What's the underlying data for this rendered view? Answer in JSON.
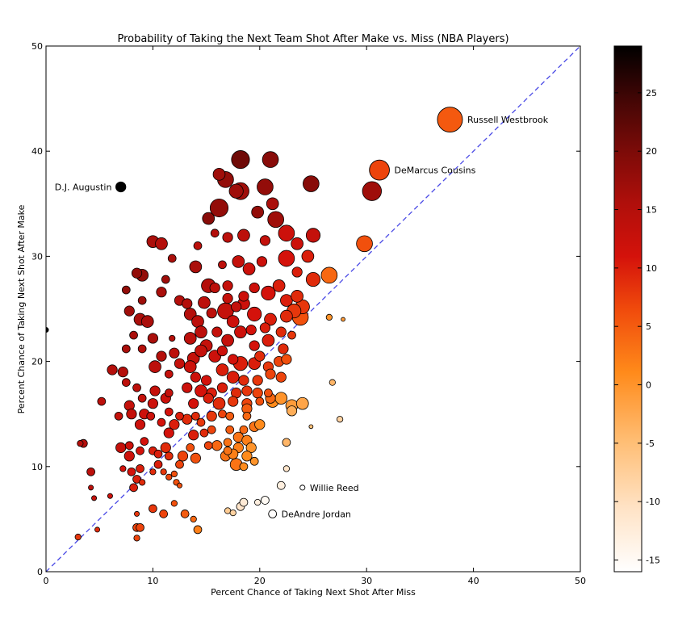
{
  "chart_data": {
    "type": "scatter",
    "title": "Probability of Taking the Next Team Shot After Make vs. Miss (NBA Players)",
    "xlabel": "Percent Chance of Taking Next Shot After Miss",
    "ylabel": "Percent Chance of Taking Next Shot After Make",
    "xlim": [
      0,
      50
    ],
    "ylim": [
      0,
      50
    ],
    "x_ticks": [
      "0",
      "10",
      "20",
      "30",
      "40",
      "50"
    ],
    "y_ticks": [
      "0",
      "10",
      "20",
      "30",
      "40",
      "50"
    ],
    "reference_line": {
      "style": "dashed",
      "from": [
        0,
        0
      ],
      "to": [
        50,
        50
      ],
      "color": "#4040e0"
    },
    "colorbar": {
      "range": [
        -16,
        29
      ],
      "ticks": [
        "-15",
        "-10",
        "-5",
        "0",
        "5",
        "10",
        "15",
        "20",
        "25"
      ],
      "colormap": "gist_heat_r"
    },
    "annotations": [
      {
        "label": "Russell Westbrook",
        "x": 37.8,
        "y": 43.0,
        "size": 25.0,
        "color_value": 5.2
      },
      {
        "label": "DeMarcus Cousins",
        "x": 31.2,
        "y": 38.2,
        "size": 20.0,
        "color_value": 7.0
      },
      {
        "label": "D.J. Augustin",
        "x": 7.0,
        "y": 36.6,
        "size": 10.0,
        "color_value": 29.6
      },
      {
        "label": "Willie Reed",
        "x": 24.0,
        "y": 8.0,
        "size": 5.0,
        "color_value": -16.0
      },
      {
        "label": "DeAndre Jordan",
        "x": 21.2,
        "y": 5.5,
        "size": 8.0,
        "color_value": -15.7
      }
    ],
    "points": [
      [
        18.2,
        39.2,
        18,
        21
      ],
      [
        21.0,
        39.2,
        16,
        19
      ],
      [
        16.2,
        37.8,
        12,
        17
      ],
      [
        16.8,
        37.3,
        16,
        18
      ],
      [
        17.8,
        36.2,
        14,
        17
      ],
      [
        18.2,
        36.2,
        17,
        17
      ],
      [
        20.5,
        36.6,
        16,
        18
      ],
      [
        24.8,
        36.9,
        16,
        19
      ],
      [
        30.5,
        36.2,
        19,
        17
      ],
      [
        15.2,
        33.6,
        12,
        19
      ],
      [
        16.2,
        34.6,
        18,
        18
      ],
      [
        19.8,
        34.2,
        12,
        18
      ],
      [
        21.2,
        35.0,
        12,
        16
      ],
      [
        21.5,
        33.5,
        16,
        17
      ],
      [
        10.0,
        31.4,
        12,
        16
      ],
      [
        10.8,
        31.2,
        12,
        15
      ],
      [
        14.2,
        31.0,
        8,
        14
      ],
      [
        15.8,
        32.2,
        8,
        15
      ],
      [
        17.0,
        31.8,
        10,
        14
      ],
      [
        18.5,
        32.0,
        12,
        14
      ],
      [
        20.5,
        31.5,
        10,
        13
      ],
      [
        22.5,
        32.2,
        16,
        12
      ],
      [
        23.5,
        31.2,
        12,
        12
      ],
      [
        25.0,
        32.0,
        14,
        13
      ],
      [
        24.5,
        30.0,
        12,
        10
      ],
      [
        29.8,
        31.2,
        16,
        6
      ],
      [
        8.5,
        28.4,
        10,
        18
      ],
      [
        9.0,
        28.2,
        12,
        18
      ],
      [
        11.2,
        27.8,
        8,
        17
      ],
      [
        11.8,
        29.8,
        8,
        16
      ],
      [
        14.0,
        29.0,
        12,
        16
      ],
      [
        15.2,
        27.2,
        14,
        15
      ],
      [
        16.5,
        29.2,
        8,
        14
      ],
      [
        17.0,
        27.2,
        10,
        13
      ],
      [
        18.0,
        29.5,
        12,
        13
      ],
      [
        19.0,
        28.8,
        12,
        12
      ],
      [
        20.2,
        29.5,
        10,
        12
      ],
      [
        22.5,
        29.8,
        16,
        11
      ],
      [
        23.5,
        28.5,
        10,
        10
      ],
      [
        25.0,
        27.8,
        14,
        9
      ],
      [
        26.5,
        28.2,
        16,
        4
      ],
      [
        7.5,
        26.8,
        8,
        18
      ],
      [
        9.0,
        25.8,
        8,
        17
      ],
      [
        10.8,
        26.6,
        10,
        16
      ],
      [
        12.5,
        25.8,
        10,
        15
      ],
      [
        14.8,
        25.6,
        12,
        14
      ],
      [
        15.8,
        27.0,
        10,
        14
      ],
      [
        17.0,
        26.0,
        10,
        13
      ],
      [
        17.8,
        25.2,
        10,
        13
      ],
      [
        18.5,
        26.2,
        10,
        12
      ],
      [
        19.5,
        27.0,
        10,
        12
      ],
      [
        20.8,
        26.5,
        14,
        11
      ],
      [
        21.8,
        27.2,
        12,
        10
      ],
      [
        22.5,
        25.8,
        12,
        10
      ],
      [
        23.5,
        26.2,
        12,
        9
      ],
      [
        24.0,
        25.2,
        14,
        8
      ],
      [
        7.8,
        24.8,
        10,
        17
      ],
      [
        8.8,
        24.0,
        12,
        16
      ],
      [
        13.5,
        24.5,
        12,
        15
      ],
      [
        14.2,
        23.8,
        12,
        14
      ],
      [
        15.5,
        24.6,
        10,
        14
      ],
      [
        16.8,
        24.8,
        16,
        13
      ],
      [
        17.5,
        23.8,
        12,
        12
      ],
      [
        18.5,
        25.5,
        12,
        12
      ],
      [
        19.5,
        24.5,
        14,
        11
      ],
      [
        21.0,
        24.0,
        12,
        10
      ],
      [
        22.5,
        24.3,
        12,
        9
      ],
      [
        23.2,
        24.8,
        14,
        8
      ],
      [
        23.8,
        24.2,
        16,
        6
      ],
      [
        9.5,
        23.8,
        12,
        16
      ],
      [
        13.2,
        25.5,
        10,
        15
      ],
      [
        16.0,
        22.8,
        10,
        13
      ],
      [
        19.2,
        23.0,
        10,
        11
      ],
      [
        20.5,
        23.2,
        10,
        10
      ],
      [
        22.0,
        22.8,
        10,
        9
      ],
      [
        26.5,
        24.2,
        6,
        0
      ],
      [
        27.8,
        24.0,
        4,
        -1
      ],
      [
        8.2,
        22.5,
        8,
        16
      ],
      [
        10.0,
        22.2,
        10,
        16
      ],
      [
        11.8,
        22.2,
        6,
        15
      ],
      [
        13.5,
        22.2,
        12,
        14
      ],
      [
        14.5,
        22.8,
        12,
        14
      ],
      [
        15.0,
        21.5,
        12,
        13
      ],
      [
        17.0,
        22.0,
        12,
        13
      ],
      [
        18.2,
        22.8,
        12,
        12
      ],
      [
        19.5,
        21.5,
        10,
        11
      ],
      [
        20.8,
        22.0,
        12,
        10
      ],
      [
        22.2,
        21.2,
        10,
        9
      ],
      [
        23.0,
        22.5,
        8,
        8
      ],
      [
        7.5,
        21.2,
        8,
        16
      ],
      [
        9.0,
        21.2,
        8,
        15
      ],
      [
        10.8,
        20.5,
        10,
        15
      ],
      [
        12.0,
        20.8,
        10,
        14
      ],
      [
        13.8,
        20.3,
        12,
        13
      ],
      [
        14.5,
        21.0,
        12,
        13
      ],
      [
        15.8,
        20.5,
        12,
        12
      ],
      [
        16.5,
        21.0,
        10,
        12
      ],
      [
        17.5,
        20.2,
        10,
        11
      ],
      [
        18.2,
        19.8,
        14,
        10
      ],
      [
        19.5,
        19.8,
        12,
        10
      ],
      [
        20.0,
        20.5,
        10,
        9
      ],
      [
        20.8,
        19.5,
        10,
        8
      ],
      [
        21.8,
        20.0,
        10,
        7
      ],
      [
        22.5,
        20.2,
        10,
        6
      ],
      [
        6.2,
        19.2,
        10,
        15
      ],
      [
        7.2,
        19.0,
        10,
        15
      ],
      [
        7.5,
        18.0,
        8,
        14
      ],
      [
        10.2,
        19.5,
        12,
        14
      ],
      [
        11.5,
        18.8,
        8,
        13
      ],
      [
        12.5,
        19.8,
        10,
        13
      ],
      [
        13.5,
        19.5,
        12,
        12
      ],
      [
        14.0,
        18.5,
        10,
        12
      ],
      [
        15.0,
        18.2,
        10,
        11
      ],
      [
        16.5,
        19.2,
        12,
        10
      ],
      [
        17.5,
        18.5,
        12,
        10
      ],
      [
        18.5,
        18.2,
        10,
        9
      ],
      [
        19.8,
        18.2,
        10,
        8
      ],
      [
        21.0,
        18.8,
        10,
        7
      ],
      [
        22.0,
        18.5,
        10,
        7
      ],
      [
        8.5,
        17.5,
        8,
        14
      ],
      [
        10.2,
        17.2,
        10,
        13
      ],
      [
        11.5,
        17.0,
        8,
        13
      ],
      [
        13.2,
        17.5,
        10,
        12
      ],
      [
        14.5,
        17.2,
        12,
        11
      ],
      [
        15.5,
        17.0,
        10,
        10
      ],
      [
        16.5,
        17.5,
        10,
        10
      ],
      [
        17.8,
        17.0,
        10,
        9
      ],
      [
        18.8,
        17.2,
        10,
        8
      ],
      [
        19.8,
        17.0,
        10,
        7
      ],
      [
        20.8,
        17.0,
        8,
        6
      ],
      [
        26.8,
        18.0,
        6,
        -4
      ],
      [
        9.0,
        16.5,
        8,
        13
      ],
      [
        10.0,
        16.0,
        10,
        12
      ],
      [
        11.2,
        16.5,
        10,
        12
      ],
      [
        13.8,
        16.0,
        10,
        11
      ],
      [
        15.2,
        16.5,
        10,
        10
      ],
      [
        16.2,
        16.0,
        12,
        9
      ],
      [
        17.5,
        16.2,
        10,
        8
      ],
      [
        18.8,
        16.0,
        10,
        7
      ],
      [
        20.0,
        16.2,
        8,
        6
      ],
      [
        21.0,
        16.5,
        10,
        4
      ],
      [
        5.2,
        16.2,
        8,
        14
      ],
      [
        7.8,
        15.8,
        10,
        13
      ],
      [
        8.0,
        15.0,
        10,
        13
      ],
      [
        9.2,
        15.0,
        10,
        12
      ],
      [
        11.5,
        15.2,
        8,
        11
      ],
      [
        12.5,
        14.8,
        8,
        10
      ],
      [
        14.0,
        14.8,
        8,
        9
      ],
      [
        15.5,
        14.8,
        10,
        8
      ],
      [
        16.5,
        15.0,
        8,
        7
      ],
      [
        18.8,
        15.5,
        10,
        5
      ],
      [
        21.2,
        16.2,
        12,
        1
      ],
      [
        22.0,
        16.5,
        12,
        0
      ],
      [
        23.0,
        15.8,
        12,
        -1
      ],
      [
        24.0,
        16.0,
        12,
        -2
      ],
      [
        23.0,
        15.3,
        10,
        -3
      ],
      [
        9.8,
        14.8,
        8,
        12
      ],
      [
        10.8,
        14.2,
        8,
        11
      ],
      [
        12.0,
        14.0,
        10,
        10
      ],
      [
        13.2,
        14.5,
        10,
        9
      ],
      [
        14.5,
        14.2,
        8,
        8
      ],
      [
        15.5,
        13.5,
        8,
        7
      ],
      [
        17.2,
        14.8,
        8,
        5
      ],
      [
        18.8,
        14.8,
        8,
        4
      ],
      [
        24.8,
        13.8,
        4,
        -5
      ],
      [
        27.5,
        14.5,
        6,
        -8
      ],
      [
        6.8,
        14.8,
        8,
        13
      ],
      [
        8.8,
        14.0,
        10,
        12
      ],
      [
        11.5,
        13.2,
        10,
        11
      ],
      [
        13.8,
        13.0,
        10,
        10
      ],
      [
        14.8,
        13.2,
        8,
        9
      ],
      [
        15.2,
        12.0,
        8,
        7
      ],
      [
        17.2,
        13.5,
        8,
        5
      ],
      [
        18.5,
        13.5,
        8,
        4
      ],
      [
        19.5,
        13.8,
        10,
        3
      ],
      [
        20.0,
        14.0,
        10,
        1
      ],
      [
        18.0,
        12.8,
        10,
        3
      ],
      [
        18.8,
        12.5,
        10,
        2
      ],
      [
        17.0,
        12.3,
        8,
        3
      ],
      [
        3.2,
        12.2,
        6,
        15
      ],
      [
        3.5,
        12.2,
        8,
        15
      ],
      [
        7.0,
        11.8,
        10,
        13
      ],
      [
        7.8,
        12.0,
        8,
        12
      ],
      [
        9.2,
        12.4,
        8,
        11
      ],
      [
        10.0,
        11.5,
        8,
        10
      ],
      [
        11.2,
        11.8,
        10,
        9
      ],
      [
        13.5,
        11.8,
        8,
        6
      ],
      [
        16.0,
        12.0,
        10,
        4
      ],
      [
        17.0,
        11.5,
        8,
        3
      ],
      [
        18.0,
        11.8,
        10,
        2
      ],
      [
        19.2,
        11.8,
        10,
        0
      ],
      [
        22.5,
        12.3,
        8,
        -4
      ],
      [
        7.8,
        11.0,
        10,
        12
      ],
      [
        8.8,
        11.5,
        8,
        11
      ],
      [
        10.5,
        11.2,
        8,
        10
      ],
      [
        11.5,
        11.0,
        8,
        9
      ],
      [
        12.8,
        11.0,
        10,
        7
      ],
      [
        14.0,
        10.8,
        10,
        6
      ],
      [
        16.8,
        11.0,
        10,
        3
      ],
      [
        17.5,
        11.2,
        10,
        2
      ],
      [
        18.8,
        11.0,
        10,
        1
      ],
      [
        10.5,
        10.2,
        8,
        10
      ],
      [
        12.5,
        10.2,
        8,
        7
      ],
      [
        18.5,
        10.0,
        8,
        1
      ],
      [
        19.5,
        10.5,
        8,
        0
      ],
      [
        17.8,
        10.2,
        12,
        3
      ],
      [
        4.2,
        9.5,
        8,
        14
      ],
      [
        7.2,
        9.8,
        6,
        11
      ],
      [
        8.0,
        9.5,
        8,
        11
      ],
      [
        8.8,
        9.8,
        8,
        10
      ],
      [
        10.0,
        9.5,
        6,
        9
      ],
      [
        11.0,
        9.5,
        6,
        8
      ],
      [
        12.0,
        9.3,
        6,
        6
      ],
      [
        22.5,
        9.8,
        6,
        -11
      ],
      [
        4.2,
        8.0,
        5,
        14
      ],
      [
        6.0,
        7.2,
        5,
        12
      ],
      [
        8.2,
        8.0,
        8,
        10
      ],
      [
        8.5,
        8.8,
        8,
        10
      ],
      [
        9.0,
        8.5,
        6,
        9
      ],
      [
        11.5,
        9.0,
        6,
        7
      ],
      [
        12.2,
        8.5,
        6,
        6
      ],
      [
        12.5,
        8.2,
        5,
        6
      ],
      [
        22.0,
        8.2,
        8,
        -13
      ],
      [
        4.5,
        7.0,
        5,
        13
      ],
      [
        10.0,
        6.0,
        8,
        8
      ],
      [
        11.0,
        5.5,
        8,
        7
      ],
      [
        12.0,
        6.5,
        6,
        6
      ],
      [
        13.0,
        5.5,
        8,
        5
      ],
      [
        13.8,
        5.0,
        6,
        4
      ],
      [
        8.5,
        5.5,
        5,
        8
      ],
      [
        17.0,
        5.8,
        6,
        -7
      ],
      [
        17.5,
        5.6,
        6,
        -8
      ],
      [
        18.2,
        6.2,
        8,
        -11
      ],
      [
        18.5,
        6.6,
        8,
        -12
      ],
      [
        19.8,
        6.6,
        6,
        -13
      ],
      [
        20.5,
        6.8,
        8,
        -15
      ],
      [
        8.5,
        4.2,
        8,
        7
      ],
      [
        8.8,
        4.2,
        8,
        7
      ],
      [
        14.2,
        4.0,
        8,
        2
      ],
      [
        4.8,
        4.0,
        5,
        9
      ],
      [
        8.5,
        3.2,
        6,
        7
      ],
      [
        3.0,
        3.3,
        6,
        8
      ],
      [
        0.0,
        23.0,
        5,
        29
      ]
    ]
  }
}
